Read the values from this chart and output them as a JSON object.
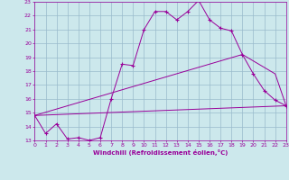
{
  "xlabel": "Windchill (Refroidissement éolien,°C)",
  "xlim": [
    0,
    23
  ],
  "ylim": [
    13,
    23
  ],
  "xticks": [
    0,
    1,
    2,
    3,
    4,
    5,
    6,
    7,
    8,
    9,
    10,
    11,
    12,
    13,
    14,
    15,
    16,
    17,
    18,
    19,
    20,
    21,
    22,
    23
  ],
  "yticks": [
    13,
    14,
    15,
    16,
    17,
    18,
    19,
    20,
    21,
    22,
    23
  ],
  "bg_color": "#cce8ec",
  "line_color": "#990099",
  "grid_color": "#99bbcc",
  "line1_x": [
    0,
    1,
    2,
    3,
    4,
    5,
    6,
    7,
    8,
    9,
    10,
    11,
    12,
    13,
    14,
    15,
    16,
    17,
    18,
    19,
    20,
    21,
    22,
    23
  ],
  "line1_y": [
    14.8,
    13.5,
    14.2,
    13.1,
    13.2,
    13.0,
    13.2,
    16.0,
    18.5,
    18.4,
    21.0,
    22.3,
    22.3,
    21.7,
    22.3,
    23.1,
    21.7,
    21.1,
    20.9,
    19.2,
    17.8,
    16.6,
    15.9,
    15.5
  ],
  "line2_x": [
    0,
    23
  ],
  "line2_y": [
    14.8,
    15.5
  ],
  "line3_x": [
    0,
    19,
    22,
    23
  ],
  "line3_y": [
    14.8,
    19.2,
    17.8,
    15.5
  ]
}
